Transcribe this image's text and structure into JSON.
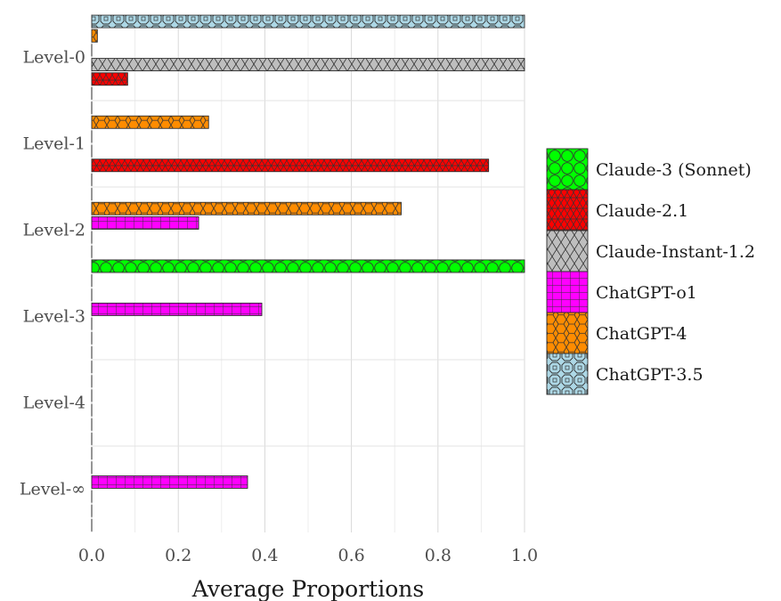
{
  "chart_data": {
    "type": "bar",
    "orientation": "horizontal",
    "xlabel": "Average Proportions",
    "ylabel": "",
    "xlim": [
      0,
      1
    ],
    "xticks": [
      "0.0",
      "0.2",
      "0.4",
      "0.6",
      "0.8",
      "1.0"
    ],
    "categories": [
      "Level-0",
      "Level-1",
      "Level-2",
      "Level-3",
      "Level-4",
      "Level-∞"
    ],
    "legend_position": "right",
    "grid": true,
    "series": [
      {
        "name": "ChatGPT-3.5",
        "color": "#add8e6",
        "pattern": "octagon",
        "values": [
          1.0,
          0.0,
          0.0,
          0.0,
          0.0,
          0.0
        ]
      },
      {
        "name": "ChatGPT-4",
        "color": "#ff8c00",
        "pattern": "hexagon",
        "values": [
          0.013,
          0.27,
          0.715,
          0.0,
          0.0,
          0.0
        ]
      },
      {
        "name": "ChatGPT-o1",
        "color": "#ff00ff",
        "pattern": "grid",
        "values": [
          0.0,
          0.0,
          0.247,
          0.393,
          0.0,
          0.36
        ]
      },
      {
        "name": "Claude-Instant-1.2",
        "color": "#bebebe",
        "pattern": "crosshatch",
        "values": [
          1.0,
          0.0,
          0.0,
          0.0,
          0.0,
          0.0
        ]
      },
      {
        "name": "Claude-2.1",
        "color": "#ff0000",
        "pattern": "triangles",
        "values": [
          0.083,
          0.917,
          0.0,
          0.0,
          0.0,
          0.0
        ]
      },
      {
        "name": "Claude-3 (Sonnet)",
        "color": "#00ff00",
        "pattern": "circles",
        "values": [
          0.0,
          0.0,
          1.0,
          0.0,
          0.0,
          0.0
        ]
      }
    ],
    "legend_order": [
      "Claude-3 (Sonnet)",
      "Claude-2.1",
      "Claude-Instant-1.2",
      "ChatGPT-o1",
      "ChatGPT-4",
      "ChatGPT-3.5"
    ]
  }
}
